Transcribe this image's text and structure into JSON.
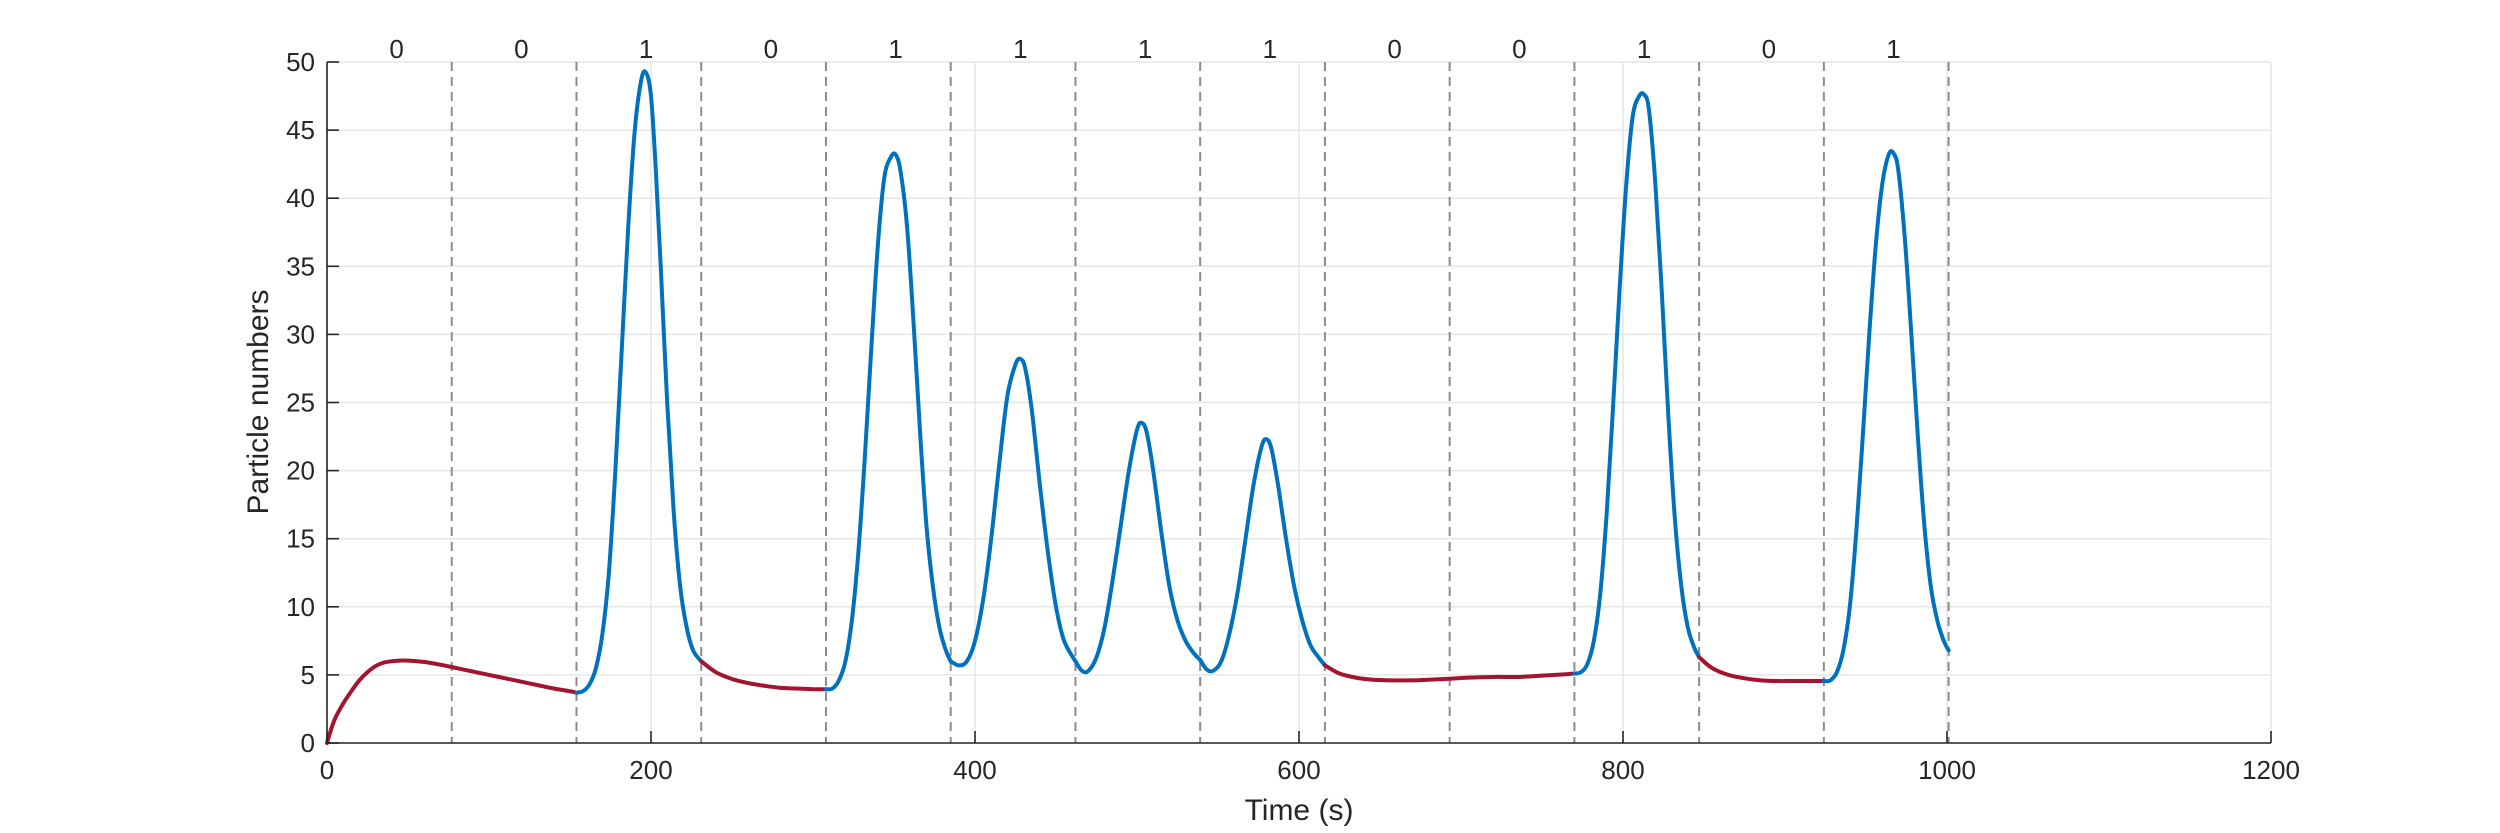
{
  "chart_data": {
    "type": "line",
    "title": "",
    "xlabel": "Time (s)",
    "ylabel": "Particle numbers",
    "xlim": [
      0,
      1200
    ],
    "ylim": [
      0,
      50
    ],
    "xticks": [
      0,
      200,
      400,
      600,
      800,
      1000,
      1200
    ],
    "yticks": [
      0,
      5,
      10,
      15,
      20,
      25,
      30,
      35,
      40,
      45,
      50
    ],
    "grid": true,
    "colors": {
      "low": "#a2142f",
      "high": "#0072bd",
      "divider": "#8c8c8c",
      "grid": "#e6e6e6",
      "axis": "#262626"
    },
    "interval_width": 77,
    "boundaries": [
      77,
      154,
      231,
      308,
      385,
      462,
      539,
      616,
      693,
      770,
      847,
      924,
      1001
    ],
    "bins": [
      {
        "center": 43,
        "label": "0"
      },
      {
        "center": 120,
        "label": "0"
      },
      {
        "center": 197,
        "label": "1"
      },
      {
        "center": 274,
        "label": "0"
      },
      {
        "center": 351,
        "label": "1"
      },
      {
        "center": 428,
        "label": "1"
      },
      {
        "center": 505,
        "label": "1"
      },
      {
        "center": 582,
        "label": "1"
      },
      {
        "center": 659,
        "label": "0"
      },
      {
        "center": 736,
        "label": "0"
      },
      {
        "center": 813,
        "label": "1"
      },
      {
        "center": 890,
        "label": "0"
      },
      {
        "center": 967,
        "label": "1"
      }
    ],
    "series": [
      {
        "state": "low",
        "x": [
          0,
          2,
          5,
          10,
          15,
          20,
          25,
          30,
          35,
          40,
          45,
          50,
          60,
          70,
          80,
          90,
          100,
          110,
          120,
          130,
          140,
          150,
          154
        ],
        "y": [
          0,
          0.8,
          1.8,
          2.9,
          3.8,
          4.6,
          5.2,
          5.65,
          5.9,
          6.0,
          6.05,
          6.05,
          5.95,
          5.75,
          5.5,
          5.25,
          5.0,
          4.75,
          4.5,
          4.25,
          4.0,
          3.8,
          3.7
        ]
      },
      {
        "state": "high",
        "x": [
          154,
          158,
          162,
          166,
          170,
          174,
          178,
          182,
          186,
          190,
          194,
          197,
          200,
          203,
          206,
          210,
          214,
          218,
          222,
          226,
          231
        ],
        "y": [
          3.7,
          3.8,
          4.3,
          5.5,
          8.0,
          12.5,
          20,
          29,
          38,
          45,
          48.7,
          49.2,
          47.5,
          42,
          35,
          25,
          17,
          11.5,
          8.5,
          6.8,
          6.0
        ]
      },
      {
        "state": "low",
        "x": [
          231,
          240,
          250,
          260,
          270,
          280,
          290,
          300,
          308
        ],
        "y": [
          6.0,
          5.2,
          4.7,
          4.4,
          4.2,
          4.05,
          4.0,
          3.95,
          3.95
        ]
      },
      {
        "state": "high",
        "x": [
          308,
          312,
          316,
          320,
          324,
          328,
          332,
          336,
          340,
          344,
          348,
          351,
          354,
          358,
          362,
          366,
          370,
          374,
          378,
          382,
          385
        ],
        "y": [
          3.95,
          4.0,
          4.6,
          6.0,
          9.0,
          14,
          21,
          29,
          36.5,
          41.5,
          43.0,
          43.2,
          42,
          38,
          31,
          23,
          16,
          11.5,
          8.5,
          6.8,
          6.0
        ]
      },
      {
        "state": "high",
        "x": [
          385,
          390,
          395,
          400,
          405,
          410,
          415,
          420,
          425,
          428,
          431,
          435,
          440,
          445,
          450,
          455,
          462
        ],
        "y": [
          6.0,
          5.7,
          6.0,
          7.5,
          10.5,
          15,
          20.5,
          25.5,
          27.8,
          28.2,
          27.5,
          24.5,
          19,
          14,
          10,
          7.5,
          6.0
        ]
      },
      {
        "state": "high",
        "x": [
          462,
          466,
          470,
          475,
          480,
          485,
          490,
          495,
          500,
          503,
          506,
          510,
          515,
          520,
          525,
          530,
          535,
          539
        ],
        "y": [
          6.0,
          5.3,
          5.3,
          6.3,
          8.5,
          12,
          16,
          20,
          23,
          23.5,
          22.8,
          20,
          15.5,
          11.5,
          9.0,
          7.5,
          6.6,
          6.1
        ]
      },
      {
        "state": "high",
        "x": [
          539,
          543,
          547,
          552,
          557,
          562,
          567,
          572,
          577,
          580,
          583,
          587,
          592,
          597,
          602,
          607,
          612,
          616
        ],
        "y": [
          6.1,
          5.4,
          5.3,
          6.0,
          8.0,
          11,
          15,
          19,
          21.8,
          22.3,
          21.6,
          19,
          15,
          11.5,
          9.0,
          7.2,
          6.3,
          5.7
        ]
      },
      {
        "state": "low",
        "x": [
          616,
          625,
          635,
          645,
          655,
          665,
          675,
          690,
          705,
          720,
          735,
          750,
          765,
          770
        ],
        "y": [
          5.7,
          5.1,
          4.8,
          4.65,
          4.6,
          4.6,
          4.62,
          4.7,
          4.8,
          4.85,
          4.85,
          4.95,
          5.05,
          5.1
        ]
      },
      {
        "state": "high",
        "x": [
          770,
          774,
          778,
          782,
          786,
          790,
          794,
          798,
          802,
          806,
          810,
          813,
          816,
          820,
          824,
          828,
          832,
          836,
          840,
          844,
          847
        ],
        "y": [
          5.1,
          5.2,
          5.8,
          7.5,
          11,
          17,
          25,
          33.5,
          41,
          46,
          47.5,
          47.6,
          46.5,
          41,
          33,
          24,
          16.5,
          11.5,
          8.5,
          7.0,
          6.3
        ]
      },
      {
        "state": "low",
        "x": [
          847,
          855,
          865,
          875,
          885,
          895,
          905,
          915,
          924
        ],
        "y": [
          6.3,
          5.5,
          5.0,
          4.75,
          4.6,
          4.55,
          4.55,
          4.55,
          4.55
        ]
      },
      {
        "state": "high",
        "x": [
          924,
          928,
          932,
          936,
          940,
          944,
          948,
          952,
          956,
          960,
          964,
          967,
          970,
          974,
          978,
          982,
          986,
          990,
          994,
          998,
          1001
        ],
        "y": [
          4.55,
          4.6,
          5.2,
          6.8,
          10,
          15.5,
          22.5,
          30,
          36.5,
          41,
          43.2,
          43.3,
          42,
          37,
          30,
          22.5,
          16,
          11.5,
          9.0,
          7.5,
          6.8
        ]
      }
    ]
  }
}
